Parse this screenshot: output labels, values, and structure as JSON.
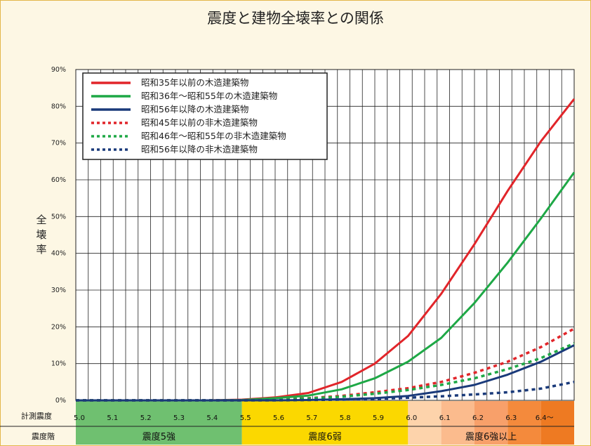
{
  "chart_data": {
    "type": "line",
    "title": "震度と建物全壊率との関係",
    "ylabel": "全壊率",
    "ylim": [
      0,
      90
    ],
    "yticks": [
      "0%",
      "10%",
      "20%",
      "30%",
      "40%",
      "50%",
      "60%",
      "70%",
      "80%",
      "90%"
    ],
    "grid": true,
    "legend_position": "top-left",
    "x_row_label": "計測震度",
    "x": [
      5.0,
      5.1,
      5.2,
      5.3,
      5.4,
      5.5,
      5.6,
      5.7,
      5.8,
      5.9,
      6.0,
      6.1,
      6.2,
      6.3,
      6.4,
      6.5
    ],
    "x_tick_labels": [
      "5.0",
      "5.1",
      "5.2",
      "5.3",
      "5.4",
      "5.5",
      "5.6",
      "5.7",
      "5.8",
      "5.9",
      "6.0",
      "6.1",
      "6.2",
      "6.3",
      "6.4〜"
    ],
    "band_row_label": "震度階",
    "bands": [
      {
        "label": "震度5強",
        "from": 5.0,
        "to": 5.5
      },
      {
        "label": "震度6弱",
        "from": 5.5,
        "to": 6.0
      },
      {
        "label": "震度6強以上",
        "from": 6.0,
        "to": 6.5
      }
    ],
    "series": [
      {
        "name": "昭和35年以前の木造建築物",
        "color": "#e1252a",
        "style": "solid",
        "values": [
          0,
          0,
          0,
          0,
          0,
          0.2,
          0.8,
          2,
          5,
          10,
          17.5,
          29,
          42.5,
          57,
          70.5,
          82
        ]
      },
      {
        "name": "昭和36年〜昭和55年の木造建築物",
        "color": "#1ea846",
        "style": "solid",
        "values": [
          0,
          0,
          0,
          0,
          0,
          0.1,
          0.6,
          1.3,
          3,
          6,
          10.5,
          17,
          26.5,
          37.5,
          49.5,
          62
        ]
      },
      {
        "name": "昭和56年以降の木造建築物",
        "color": "#1a3a7a",
        "style": "solid",
        "values": [
          0,
          0,
          0,
          0,
          0,
          0,
          0,
          0.1,
          0.3,
          0.6,
          1.2,
          2.5,
          4.2,
          7,
          10.5,
          15
        ]
      },
      {
        "name": "昭和45年以前の非木造建築物",
        "color": "#e1252a",
        "style": "dotted",
        "values": [
          0,
          0,
          0,
          0,
          0,
          0,
          0.2,
          0.6,
          1.2,
          2.2,
          3.3,
          5,
          7.5,
          10.5,
          14.5,
          19.5
        ]
      },
      {
        "name": "昭和46年〜昭和55年の非木造建築物",
        "color": "#1ea846",
        "style": "dotted",
        "values": [
          0,
          0,
          0,
          0,
          0,
          0,
          0.2,
          0.5,
          1,
          1.8,
          2.8,
          4.2,
          6,
          8.5,
          11.5,
          15.5
        ]
      },
      {
        "name": "昭和56年以降の非木造建築物",
        "color": "#1a3a7a",
        "style": "dotted",
        "values": [
          0,
          0,
          0,
          0,
          0,
          0,
          0,
          0.1,
          0.2,
          0.4,
          0.7,
          1.1,
          1.6,
          2.2,
          3.2,
          5
        ]
      }
    ]
  }
}
